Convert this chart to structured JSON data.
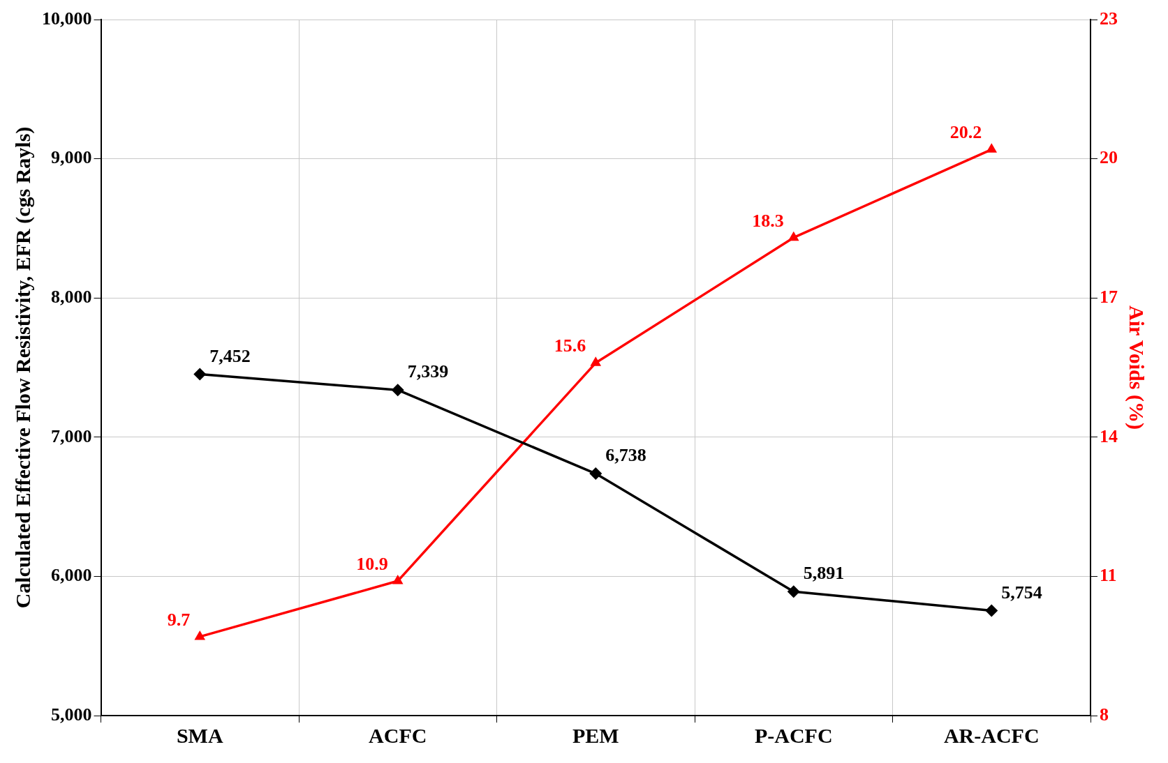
{
  "chart_data": {
    "type": "line",
    "ylabel": "Calculated Effective Flow Resistivity, EFR (cgs Rayls)",
    "y2label": "Air Voids (%)",
    "categories": [
      "SMA",
      "ACFC",
      "PEM",
      "P-ACFC",
      "AR-ACFC"
    ],
    "series": [
      {
        "color": "#000000",
        "marker": "diamond",
        "values": [
          7452,
          7339,
          6738,
          5891,
          5754
        ],
        "value_labels": [
          "7,452",
          "7,339",
          "6,738",
          "5,891",
          "5,754"
        ]
      },
      {
        "color": "#ff0000",
        "marker": "triangle",
        "axis": "y2",
        "values": [
          9.7,
          10.9,
          15.6,
          18.3,
          20.2
        ]
      }
    ],
    "ylim": [
      5000,
      10000
    ],
    "yticks": [
      {
        "value": 5000,
        "label": "5,000"
      },
      {
        "value": 6000,
        "label": "6,000"
      },
      {
        "value": 7000,
        "label": "7,000"
      },
      {
        "value": 8000,
        "label": "8,000"
      },
      {
        "value": 9000,
        "label": "9,000"
      },
      {
        "value": 10000,
        "label": "10,000"
      }
    ],
    "y2lim": [
      8,
      23
    ],
    "y2ticks": [
      8,
      11,
      14,
      17,
      20,
      23
    ],
    "grid": true,
    "legend": false,
    "data_labels": true,
    "line_style": "solid"
  }
}
